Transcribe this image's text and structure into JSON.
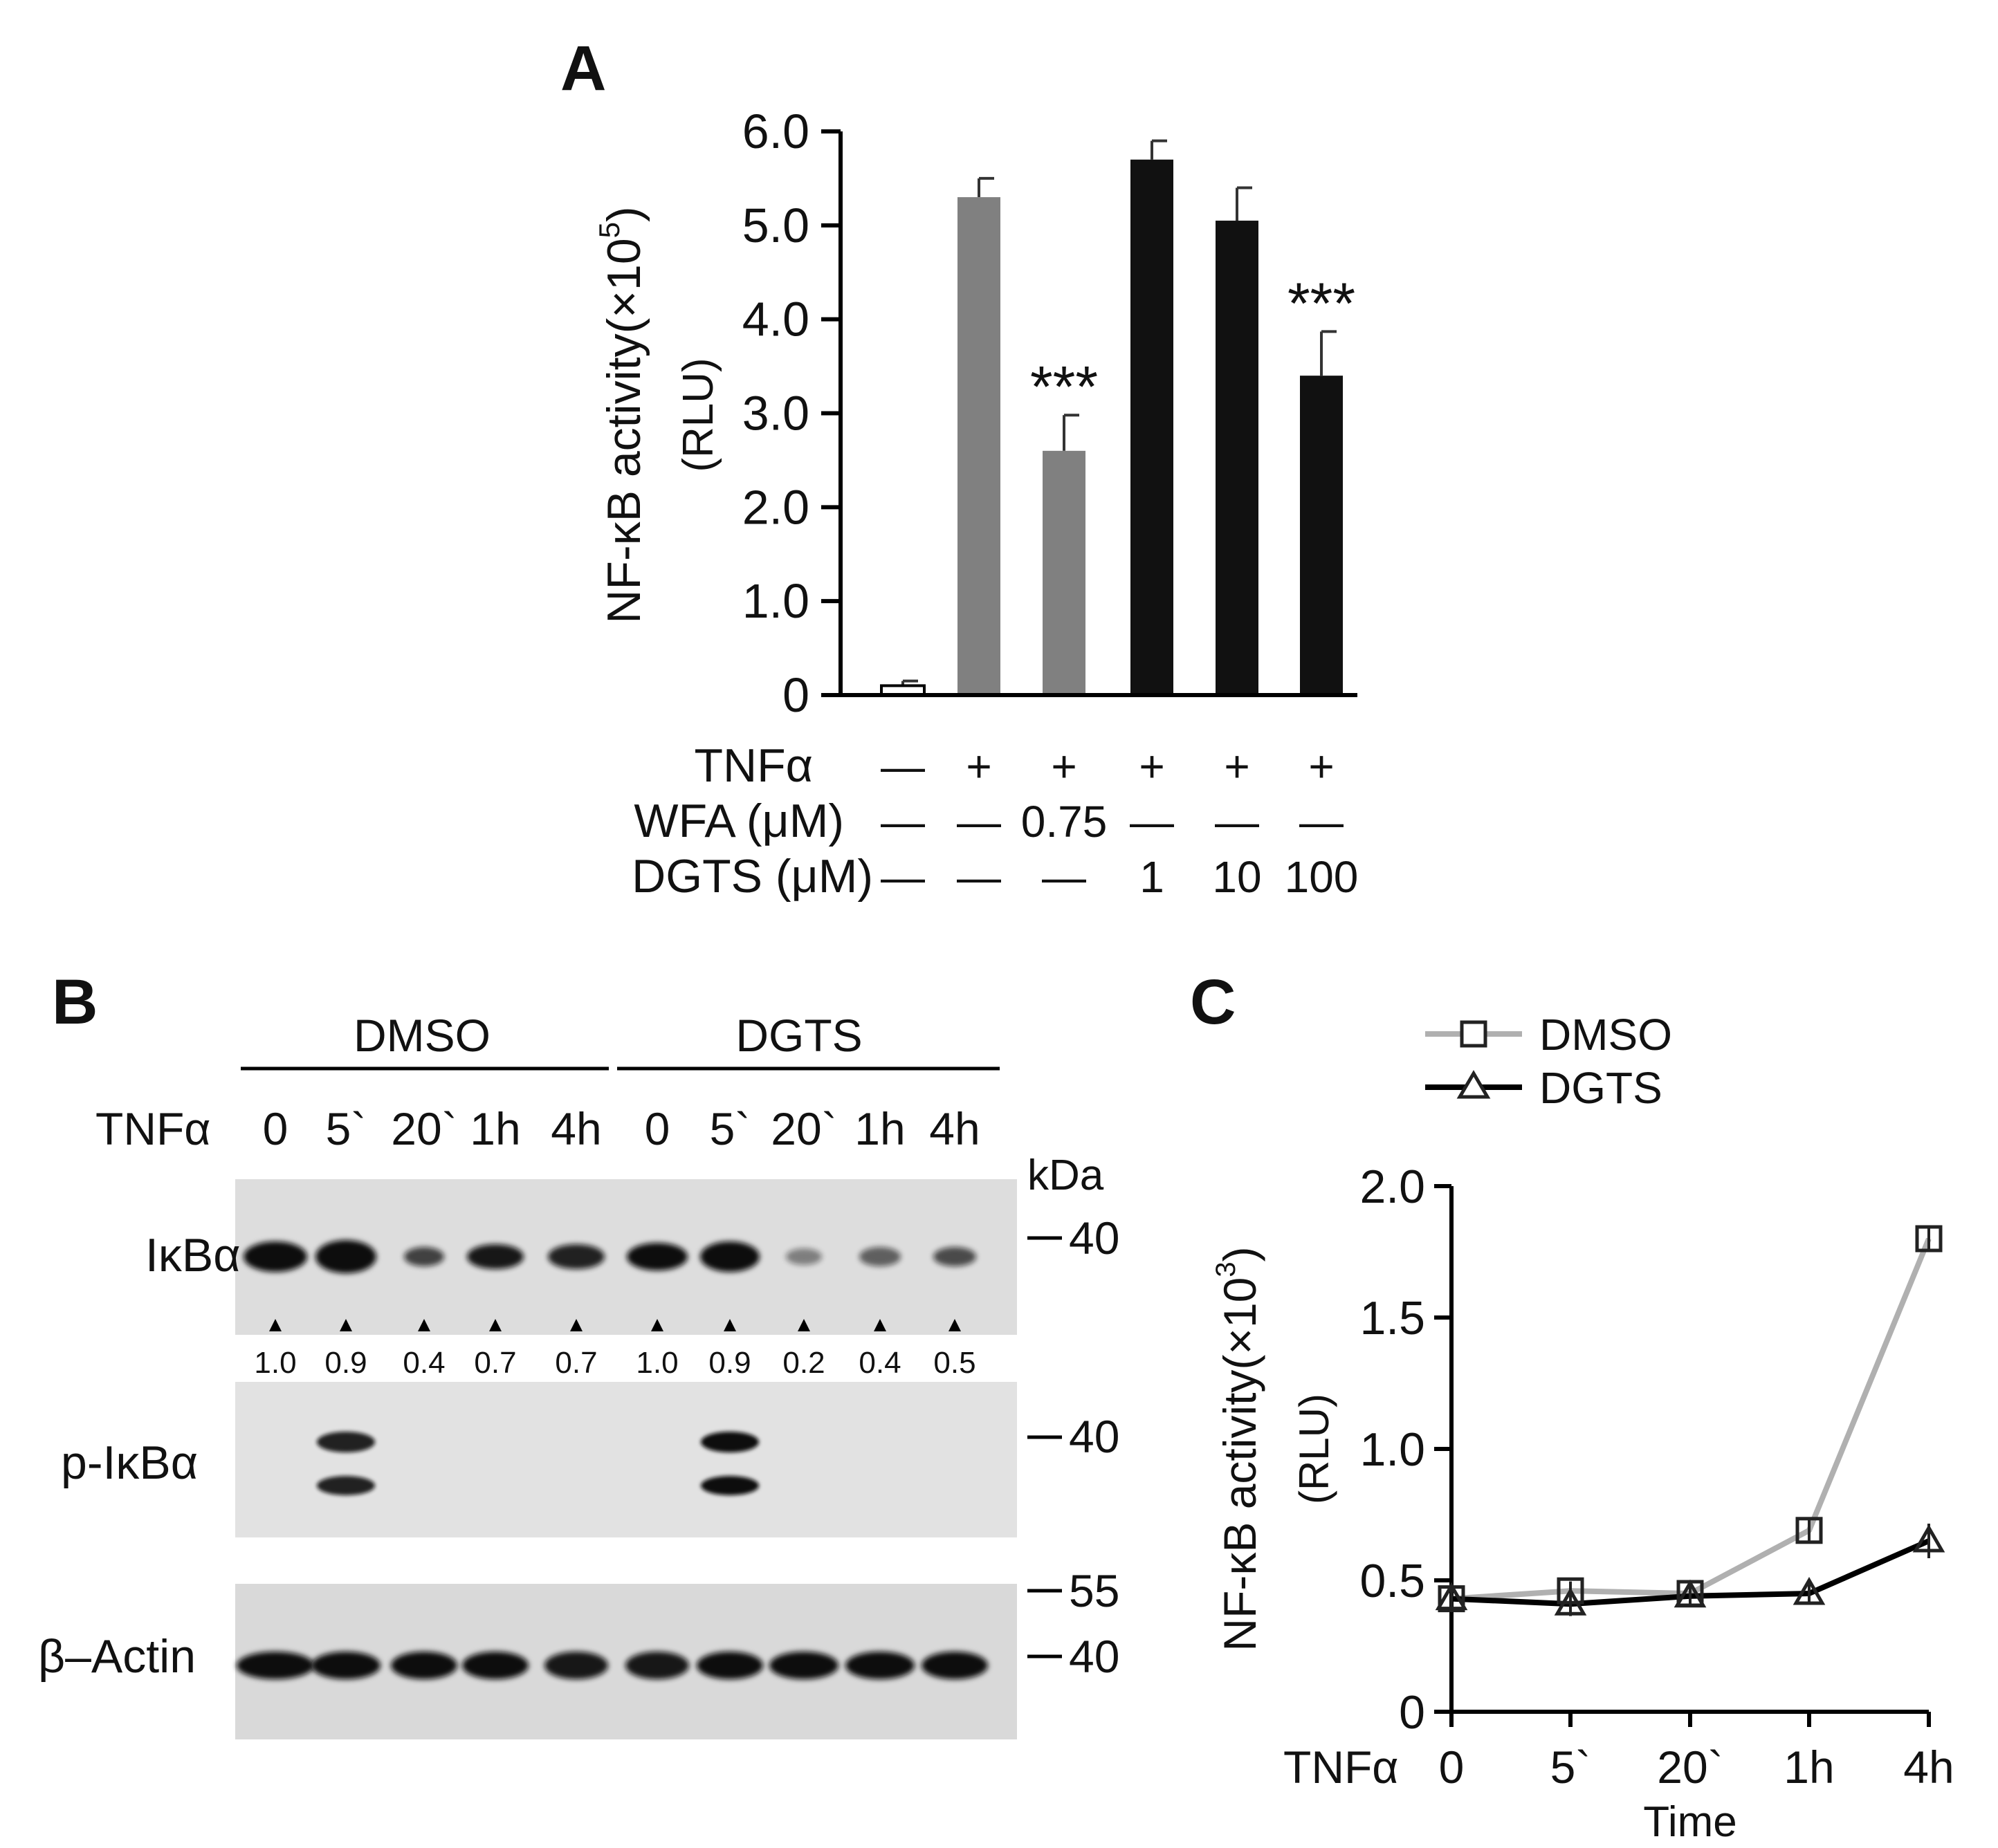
{
  "panels": {
    "a": "A",
    "b": "B",
    "c": "C"
  },
  "colors": {
    "gray_bar": "#808080",
    "black_bar": "#111111",
    "white_bar": "#ffffff",
    "dmso_line": "#b0b0b0",
    "dgts_line": "#000000"
  },
  "chart_data": [
    {
      "type": "bar",
      "panel": "A",
      "ylabel": "NF-κB activity(×10^5)",
      "ylabel_line1": "NF-κB activity(×10",
      "ylabel_exp": "5",
      "ylabel_close": ")",
      "ylabel_unit": "(RLU)",
      "ylim": [
        0,
        6.0
      ],
      "yticks": [
        "0",
        "1.0",
        "2.0",
        "3.0",
        "4.0",
        "5.0",
        "6.0"
      ],
      "values": [
        0.1,
        5.3,
        2.6,
        5.7,
        5.05,
        3.4
      ],
      "errors": [
        0.05,
        0.2,
        0.38,
        0.2,
        0.35,
        0.47
      ],
      "bar_colors": [
        "white_bar",
        "gray_bar",
        "gray_bar",
        "black_bar",
        "black_bar",
        "black_bar"
      ],
      "significance": [
        "",
        "",
        "***",
        "",
        "",
        "***"
      ],
      "condition_labels": [
        "TNFα",
        "WFA (μM)",
        "DGTS (μM)"
      ],
      "conditions": [
        [
          "—",
          "+",
          "+",
          "+",
          "+",
          "+"
        ],
        [
          "—",
          "—",
          "0.75",
          "—",
          "—",
          "—"
        ],
        [
          "—",
          "—",
          "—",
          "1",
          "10",
          "100"
        ]
      ]
    },
    {
      "type": "line",
      "panel": "C",
      "ylabel": "NF-κB activity(×10^3)",
      "ylabel_line1": "NF-κB activity(×10",
      "ylabel_exp": "3",
      "ylabel_close": ")",
      "ylabel_unit": "(RLU)",
      "xlabel": "Time",
      "x_prefix": "TNFα",
      "categories": [
        "0",
        "5`",
        "20`",
        "1h",
        "4h"
      ],
      "ylim": [
        0,
        2.0
      ],
      "yticks": [
        "0",
        "0.5",
        "1.0",
        "1.5",
        "2.0"
      ],
      "legend_position": "top",
      "series": [
        {
          "name": "DMSO",
          "marker": "square",
          "values": [
            0.43,
            0.46,
            0.45,
            0.69,
            1.8
          ],
          "errors": [
            0.02,
            0.02,
            0.02,
            0.03,
            0.03
          ]
        },
        {
          "name": "DGTS",
          "marker": "triangle",
          "values": [
            0.43,
            0.41,
            0.44,
            0.45,
            0.65
          ],
          "errors": [
            0.02,
            0.03,
            0.02,
            0.02,
            0.05
          ]
        }
      ]
    }
  ],
  "blot": {
    "group_labels": [
      "DMSO",
      "DGTS"
    ],
    "treatment_label": "TNFα",
    "lanes": [
      "0",
      "5`",
      "20`",
      "1h",
      "4h",
      "0",
      "5`",
      "20`",
      "1h",
      "4h"
    ],
    "kda_label": "kDa",
    "rows": [
      {
        "name": "IκBα",
        "markers": [
          "40"
        ]
      },
      {
        "name": "p-IκBα",
        "markers": [
          "40"
        ]
      },
      {
        "name": "β–Actin",
        "markers": [
          "55",
          "40"
        ]
      }
    ],
    "quant": [
      "1.0",
      "0.9",
      "0.4",
      "0.7",
      "0.7",
      "1.0",
      "0.9",
      "0.2",
      "0.4",
      "0.5"
    ]
  }
}
